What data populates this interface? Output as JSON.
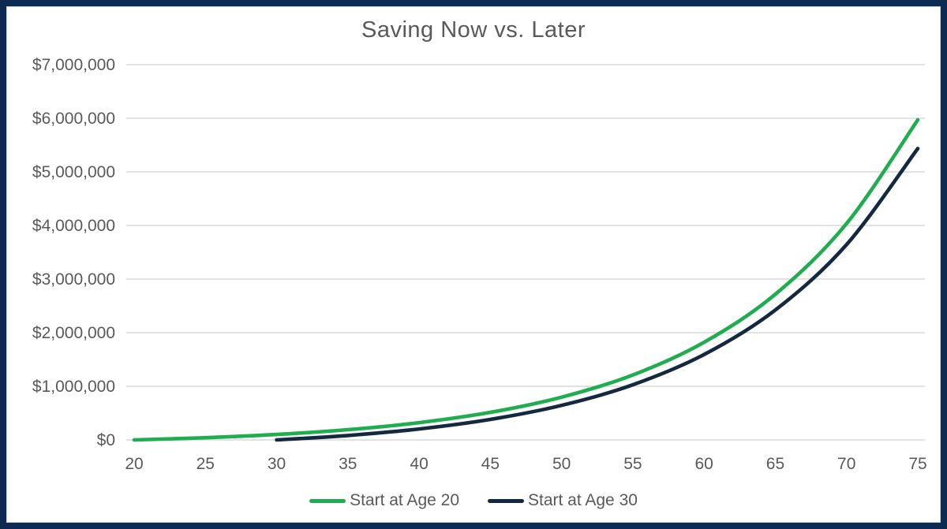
{
  "chart_data": {
    "type": "line",
    "title": "Saving Now vs. Later",
    "xlabel": "",
    "ylabel": "",
    "x_range": [
      20,
      75
    ],
    "y_range": [
      0,
      7000000
    ],
    "grid": "horizontal",
    "legend_position": "bottom",
    "x_ticks": [
      "20",
      "25",
      "30",
      "35",
      "40",
      "45",
      "50",
      "55",
      "60",
      "65",
      "70",
      "75"
    ],
    "y_ticks": [
      {
        "value": 7000000,
        "label": "$7,000,000"
      },
      {
        "value": 6000000,
        "label": "$6,000,000"
      },
      {
        "value": 5000000,
        "label": "$5,000,000"
      },
      {
        "value": 4000000,
        "label": "$4,000,000"
      },
      {
        "value": 3000000,
        "label": "$3,000,000"
      },
      {
        "value": 2000000,
        "label": "$2,000,000"
      },
      {
        "value": 1000000,
        "label": "$1,000,000"
      },
      {
        "value": 0,
        "label": "$0"
      }
    ],
    "series": [
      {
        "name": "Start at Age 20",
        "color": "#1fad50",
        "x": [
          20,
          25,
          30,
          35,
          40,
          45,
          50,
          55,
          60,
          65,
          70,
          75
        ],
        "values": [
          0,
          41000,
          102000,
          191000,
          322000,
          514000,
          797000,
          1212000,
          1822000,
          2718000,
          4035000,
          5970000
        ]
      },
      {
        "name": "Start at Age 30",
        "color": "#14293f",
        "x": [
          30,
          35,
          40,
          45,
          50,
          55,
          60,
          65,
          70,
          75
        ],
        "values": [
          0,
          83000,
          204000,
          382000,
          644000,
          1028000,
          1593000,
          2423000,
          3643000,
          5436000
        ]
      }
    ],
    "colors": {
      "grid_line": "#d9d9d9",
      "axis_text": "#595959",
      "title_text": "#595959",
      "frame_border": "#0d2b52",
      "background": "#ffffff"
    }
  }
}
